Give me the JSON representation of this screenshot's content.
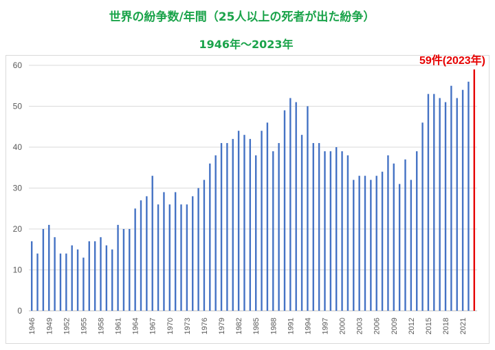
{
  "header": {
    "title": "世界の紛争数/年間（25人以上の死者が出た紛争）",
    "subtitle": "1946年～2023年"
  },
  "colors": {
    "bar": "#4472c4",
    "highlight": "#e60000",
    "title": "#1aa34a",
    "grid": "#d9d9d9"
  },
  "chart_data": {
    "type": "bar",
    "title": "世界の紛争数/年間（25人以上の死者が出た紛争）",
    "subtitle": "1946年～2023年",
    "xlabel": "",
    "ylabel": "",
    "ylim": [
      0,
      60
    ],
    "yticks": [
      0,
      10,
      20,
      30,
      40,
      50,
      60
    ],
    "grid": true,
    "legend": "none",
    "xticks": [
      "1946",
      "1949",
      "1952",
      "1955",
      "1958",
      "1961",
      "1964",
      "1967",
      "1970",
      "1973",
      "1976",
      "1979",
      "1982",
      "1985",
      "1988",
      "1991",
      "1994",
      "1997",
      "2000",
      "2003",
      "2006",
      "2009",
      "2012",
      "2015",
      "2018",
      "2021"
    ],
    "categories": [
      1946,
      1947,
      1948,
      1949,
      1950,
      1951,
      1952,
      1953,
      1954,
      1955,
      1956,
      1957,
      1958,
      1959,
      1960,
      1961,
      1962,
      1963,
      1964,
      1965,
      1966,
      1967,
      1968,
      1969,
      1970,
      1971,
      1972,
      1973,
      1974,
      1975,
      1976,
      1977,
      1978,
      1979,
      1980,
      1981,
      1982,
      1983,
      1984,
      1985,
      1986,
      1987,
      1988,
      1989,
      1990,
      1991,
      1992,
      1993,
      1994,
      1995,
      1996,
      1997,
      1998,
      1999,
      2000,
      2001,
      2002,
      2003,
      2004,
      2005,
      2006,
      2007,
      2008,
      2009,
      2010,
      2011,
      2012,
      2013,
      2014,
      2015,
      2016,
      2017,
      2018,
      2019,
      2020,
      2021,
      2022,
      2023
    ],
    "values": [
      17,
      14,
      20,
      21,
      18,
      14,
      14,
      16,
      15,
      13,
      17,
      17,
      18,
      16,
      15,
      21,
      20,
      20,
      25,
      27,
      28,
      33,
      26,
      29,
      26,
      29,
      26,
      26,
      28,
      30,
      32,
      36,
      38,
      41,
      41,
      42,
      44,
      43,
      42,
      38,
      44,
      46,
      39,
      41,
      49,
      52,
      51,
      43,
      50,
      41,
      41,
      39,
      39,
      40,
      39,
      38,
      32,
      33,
      33,
      32,
      33,
      34,
      38,
      36,
      31,
      37,
      32,
      39,
      46,
      53,
      53,
      52,
      51,
      55,
      52,
      54,
      56,
      59
    ],
    "highlight": {
      "year": 2023,
      "value": 59,
      "label": "59件(2023年)"
    }
  }
}
